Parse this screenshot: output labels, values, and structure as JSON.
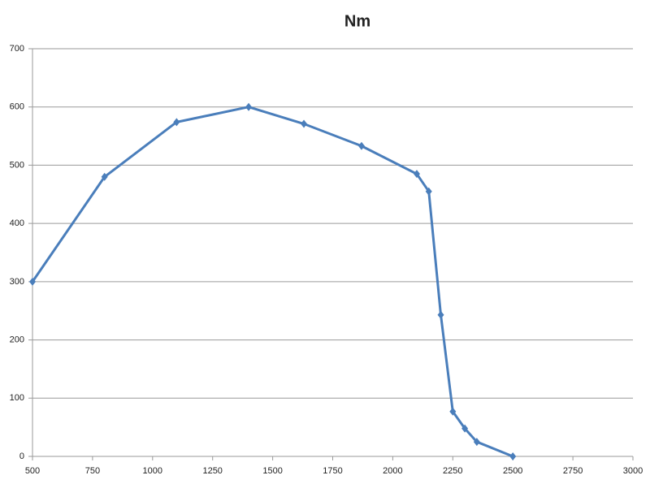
{
  "chart_data": {
    "type": "line",
    "title": "Nm",
    "x": [
      500,
      800,
      1100,
      1400,
      1630,
      1870,
      2100,
      2150,
      2200,
      2250,
      2300,
      2350,
      2500
    ],
    "series": [
      {
        "name": "Nm",
        "color": "#4a7ebb",
        "values": [
          300,
          480,
          574,
          600,
          571,
          533,
          485,
          455,
          243,
          77,
          48,
          25,
          0
        ]
      }
    ],
    "xlim": [
      500,
      3000
    ],
    "xticks": [
      500,
      750,
      1000,
      1250,
      1500,
      1750,
      2000,
      2250,
      2500,
      2750,
      3000
    ],
    "ylim": [
      0,
      700
    ],
    "yticks": [
      0,
      100,
      200,
      300,
      400,
      500,
      600,
      700
    ],
    "grid": true
  }
}
